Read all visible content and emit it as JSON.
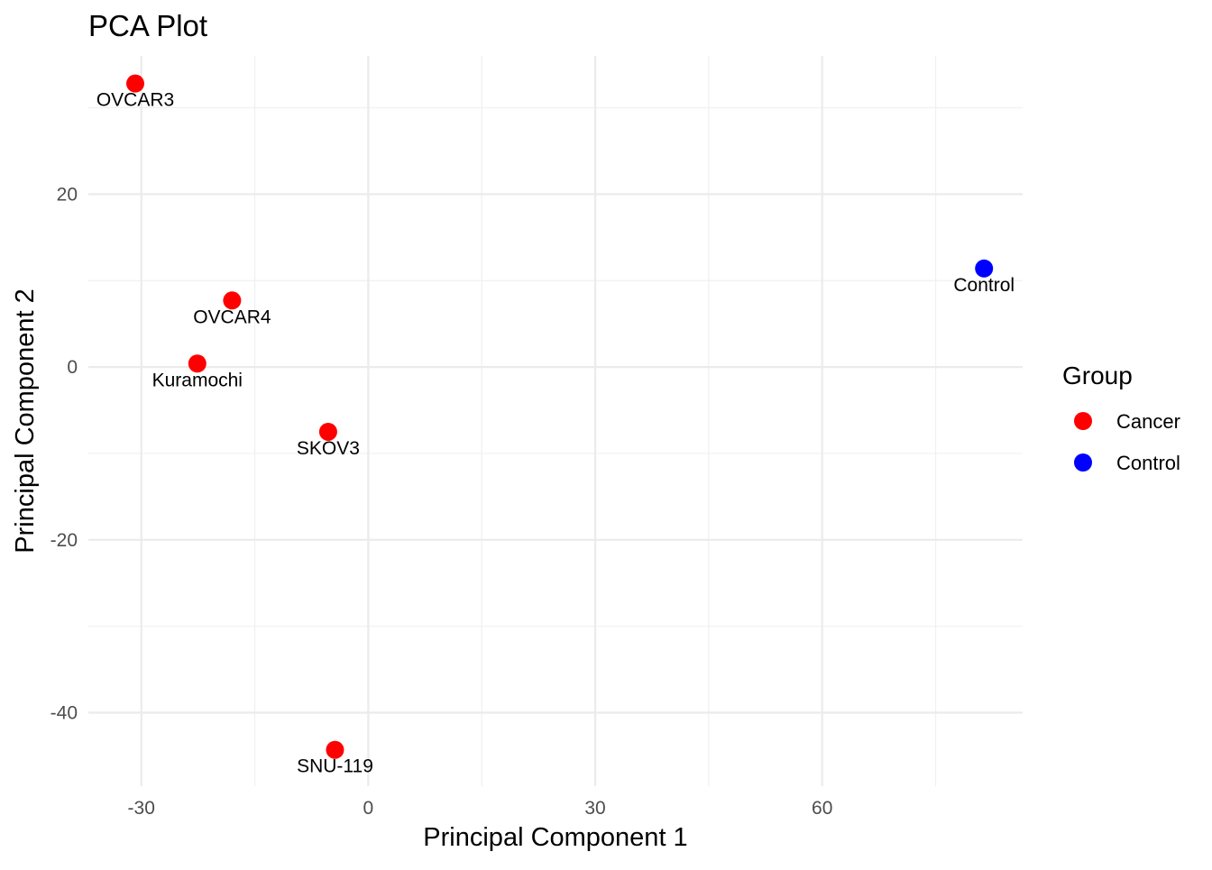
{
  "chart_data": {
    "type": "scatter",
    "title": "PCA Plot",
    "xlabel": "Principal Component 1",
    "ylabel": "Principal Component 2",
    "xlim": [
      -37,
      86.5
    ],
    "ylim": [
      -48.5,
      36
    ],
    "x_ticks": [
      -30,
      0,
      30,
      60
    ],
    "y_ticks": [
      -40,
      -20,
      0,
      20
    ],
    "x_minor": [
      -15,
      15,
      45,
      75
    ],
    "y_minor": [
      -30,
      -10,
      10,
      30
    ],
    "grid": true,
    "legend": {
      "title": "Group",
      "position": "right",
      "items": [
        {
          "label": "Cancer",
          "color": "#ff0000"
        },
        {
          "label": "Control",
          "color": "#0000ff"
        }
      ]
    },
    "points": [
      {
        "label": "OVCAR3",
        "group": "Cancer",
        "x": -30.8,
        "y": 32.8
      },
      {
        "label": "OVCAR4",
        "group": "Cancer",
        "x": -18.0,
        "y": 7.7
      },
      {
        "label": "Kuramochi",
        "group": "Cancer",
        "x": -22.6,
        "y": 0.4
      },
      {
        "label": "SKOV3",
        "group": "Cancer",
        "x": -5.3,
        "y": -7.5
      },
      {
        "label": "SNU-119",
        "group": "Cancer",
        "x": -4.4,
        "y": -44.3
      },
      {
        "label": "Control",
        "group": "Control",
        "x": 81.4,
        "y": 11.4
      }
    ]
  }
}
